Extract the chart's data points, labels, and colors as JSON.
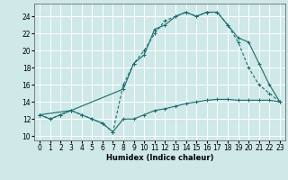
{
  "title": "",
  "xlabel": "Humidex (Indice chaleur)",
  "background_color": "#cfe8e8",
  "grid_color": "#ffffff",
  "line_color": "#1a6b6b",
  "xlim": [
    -0.5,
    23.5
  ],
  "ylim": [
    9.5,
    25.5
  ],
  "xticks": [
    0,
    1,
    2,
    3,
    4,
    5,
    6,
    7,
    8,
    9,
    10,
    11,
    12,
    13,
    14,
    15,
    16,
    17,
    18,
    19,
    20,
    21,
    22,
    23
  ],
  "yticks": [
    10,
    12,
    14,
    16,
    18,
    20,
    22,
    24
  ],
  "line1_x": [
    0,
    1,
    2,
    3,
    4,
    5,
    6,
    7,
    8,
    9,
    10,
    11,
    12,
    13,
    14,
    15,
    16,
    17,
    18,
    19,
    20,
    21,
    22,
    23
  ],
  "line1_y": [
    12.5,
    12.0,
    12.5,
    13.0,
    12.5,
    12.0,
    11.5,
    10.5,
    12.0,
    12.0,
    12.5,
    13.0,
    13.2,
    13.5,
    13.8,
    14.0,
    14.2,
    14.3,
    14.3,
    14.2,
    14.2,
    14.2,
    14.2,
    14.0
  ],
  "line2_x": [
    0,
    1,
    2,
    3,
    4,
    5,
    6,
    7,
    8,
    9,
    10,
    11,
    12,
    13,
    14,
    15,
    16,
    17,
    18,
    19,
    20,
    21,
    22,
    23
  ],
  "line2_y": [
    12.5,
    12.0,
    12.5,
    13.0,
    12.5,
    12.0,
    11.5,
    10.5,
    16.0,
    18.5,
    20.0,
    22.0,
    23.5,
    24.0,
    24.5,
    24.0,
    24.5,
    24.5,
    23.0,
    21.0,
    18.0,
    16.0,
    15.0,
    14.0
  ],
  "line3_x": [
    0,
    3,
    8,
    9,
    10,
    11,
    12,
    13,
    14,
    15,
    16,
    17,
    18,
    19,
    20,
    21,
    22,
    23
  ],
  "line3_y": [
    12.5,
    13.0,
    15.5,
    18.5,
    19.5,
    22.5,
    23.0,
    24.0,
    24.5,
    24.0,
    24.5,
    24.5,
    23.0,
    21.5,
    21.0,
    18.5,
    16.0,
    14.0
  ]
}
